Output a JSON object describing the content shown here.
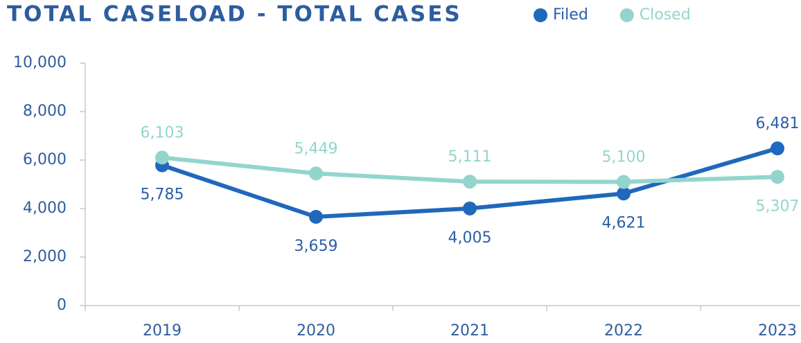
{
  "chart_data": {
    "type": "line",
    "title": "TOTAL CASELOAD - TOTAL CASES",
    "categories": [
      "2019",
      "2020",
      "2021",
      "2022",
      "2023"
    ],
    "series": [
      {
        "name": "Filed",
        "color": "#1f68bd",
        "values": [
          5785,
          3659,
          4005,
          4621,
          6481
        ],
        "value_labels": [
          "5,785",
          "3,659",
          "4,005",
          "4,621",
          "6,481"
        ]
      },
      {
        "name": "Closed",
        "color": "#93d5cd",
        "values": [
          6103,
          5449,
          5111,
          5100,
          5307
        ],
        "value_labels": [
          "6,103",
          "5,449",
          "5,111",
          "5,100",
          "5,307"
        ]
      }
    ],
    "ylim": [
      0,
      10000
    ],
    "yticks": [
      0,
      {
        "value": 2000,
        "label": "2,000"
      },
      {
        "value": 4000,
        "label": "4,000"
      },
      {
        "value": 6000,
        "label": "6,000"
      },
      {
        "value": 8000,
        "label": "8,000"
      },
      {
        "value": 10000,
        "label": "10,000"
      }
    ],
    "legend": "top-right"
  }
}
